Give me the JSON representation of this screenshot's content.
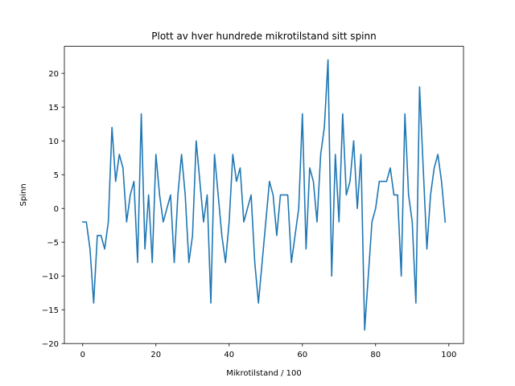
{
  "chart_data": {
    "type": "line",
    "title": "Plott av hver hundrede mikrotilstand sitt spinn",
    "xlabel": "Mikrotilstand / 100",
    "ylabel": "Spinn",
    "xlim": [
      -5,
      104
    ],
    "ylim": [
      -20,
      24
    ],
    "xticks": [
      0,
      20,
      40,
      60,
      80,
      100
    ],
    "yticks": [
      -20,
      -15,
      -10,
      -5,
      0,
      5,
      10,
      15,
      20
    ],
    "grid": false,
    "line_color": "#1f77b4",
    "series": [
      {
        "x": [
          0,
          1,
          2,
          3,
          4,
          5,
          6,
          7,
          8,
          9,
          10,
          11,
          12,
          13,
          14,
          15,
          16,
          17,
          18,
          19,
          20,
          21,
          22,
          23,
          24,
          25,
          26,
          27,
          28,
          29,
          30,
          31,
          32,
          33,
          34,
          35,
          36,
          37,
          38,
          39,
          40,
          41,
          42,
          43,
          44,
          45,
          46,
          47,
          48,
          49,
          50,
          51,
          52,
          53,
          54,
          55,
          56,
          57,
          58,
          59,
          60,
          61,
          62,
          63,
          64,
          65,
          66,
          67,
          68,
          69,
          70,
          71,
          72,
          73,
          74,
          75,
          76,
          77,
          78,
          79,
          80,
          81,
          82,
          83,
          84,
          85,
          86,
          87,
          88,
          89,
          90,
          91,
          92,
          93,
          94,
          95,
          96,
          97,
          98,
          99
        ],
        "values": [
          -2,
          -2,
          -6,
          -14,
          -4,
          -4,
          -6,
          -2,
          12,
          4,
          8,
          6,
          -2,
          2,
          4,
          -8,
          14,
          -6,
          2,
          -8,
          8,
          2,
          -2,
          0,
          2,
          -8,
          2,
          8,
          2,
          -8,
          -4,
          10,
          4,
          -2,
          2,
          -14,
          8,
          2,
          -4,
          -8,
          -2,
          8,
          4,
          6,
          -2,
          0,
          2,
          -8,
          -14,
          -8,
          -2,
          4,
          2,
          -4,
          2,
          2,
          2,
          -8,
          -4,
          0,
          14,
          -6,
          6,
          4,
          -2,
          8,
          12,
          22,
          -10,
          8,
          -2,
          14,
          2,
          4,
          10,
          0,
          8,
          -18,
          -10,
          -2,
          0,
          4,
          4,
          4,
          6,
          2,
          2,
          -10,
          14,
          2,
          -2,
          -14,
          18,
          6,
          -6,
          2,
          6,
          8,
          4,
          -2
        ]
      }
    ]
  }
}
